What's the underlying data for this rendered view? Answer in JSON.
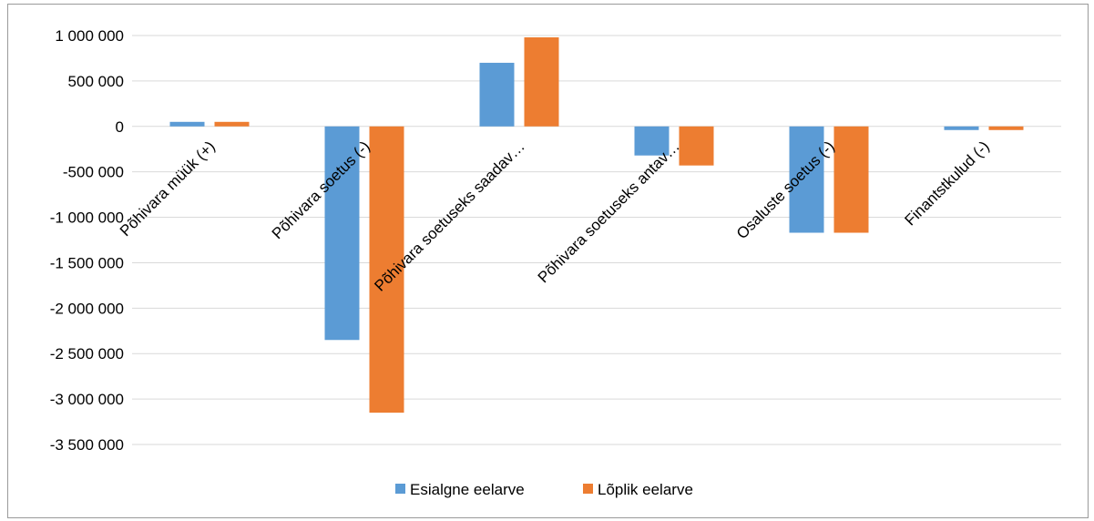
{
  "chart_data": {
    "type": "bar",
    "categories": [
      "Põhivara müük (+)",
      "Põhivara soetus (-)",
      "Põhivara soetuseks saadav…",
      "Põhivara soetuseks antav…",
      "Osaluste soetus (-)",
      "Finantstkulud (-)"
    ],
    "series": [
      {
        "name": "Esialgne eelarve",
        "color": "#5b9bd5",
        "values": [
          50000,
          -2350000,
          700000,
          -320000,
          -1170000,
          -40000
        ]
      },
      {
        "name": "Lõplik eelarve",
        "color": "#ed7d31",
        "values": [
          50000,
          -3150000,
          980000,
          -430000,
          -1170000,
          -40000
        ]
      }
    ],
    "ylim": [
      -3500000,
      1000000
    ],
    "yticks": [
      {
        "value": 1000000,
        "label": "1 000 000"
      },
      {
        "value": 500000,
        "label": "500 000"
      },
      {
        "value": 0,
        "label": "0"
      },
      {
        "value": -500000,
        "label": "-500 000"
      },
      {
        "value": -1000000,
        "label": "-1 000 000"
      },
      {
        "value": -1500000,
        "label": "-1 500 000"
      },
      {
        "value": -2000000,
        "label": "-2 000 000"
      },
      {
        "value": -2500000,
        "label": "-2 500 000"
      },
      {
        "value": -3000000,
        "label": "-3 000 000"
      },
      {
        "value": -3500000,
        "label": "-3 500 000"
      }
    ],
    "grid": true,
    "legend_position": "bottom",
    "gridline_color": "#d9d9d9",
    "title": "",
    "xlabel": "",
    "ylabel": ""
  }
}
